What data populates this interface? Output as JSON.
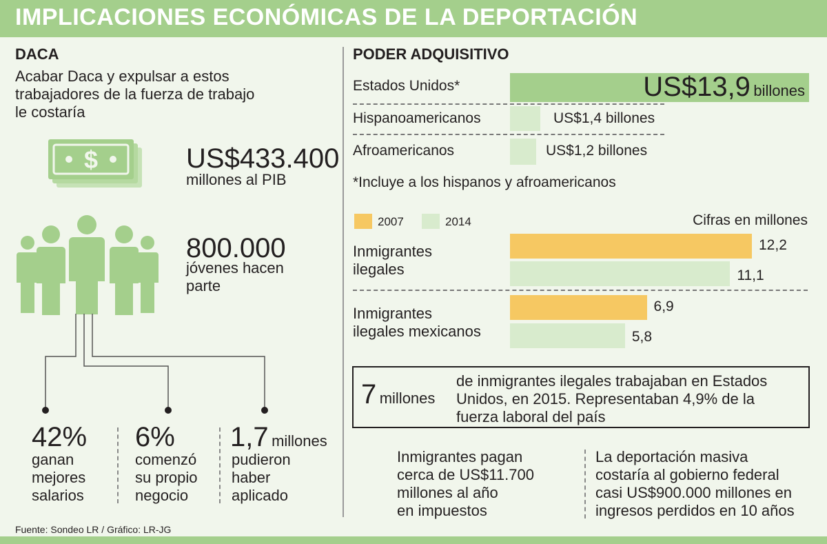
{
  "header": {
    "title": "IMPLICACIONES ECONÓMICAS DE LA DEPORTACIÓN"
  },
  "daca": {
    "title": "DACA",
    "intro": [
      "Acabar Daca y expulsar a estos",
      "trabajadores de la fuerza de trabajo",
      "le costaría"
    ],
    "gdp_value": "US$433.400",
    "gdp_label": "millones al PIB",
    "youth_value": "800.000",
    "youth_label": [
      "jóvenes hacen",
      "parte"
    ],
    "stats": [
      {
        "value": "42%",
        "unit": "",
        "label": [
          "ganan",
          "mejores",
          "salarios"
        ]
      },
      {
        "value": "6%",
        "unit": "",
        "label": [
          "comenzó",
          "su propio",
          "negocio"
        ]
      },
      {
        "value": "1,7",
        "unit": "millones",
        "label": [
          "pudieron",
          "haber",
          "aplicado"
        ]
      }
    ],
    "icons": {
      "money": "money-bills-icon",
      "people": "people-group-icon"
    }
  },
  "poder": {
    "title": "PODER ADQUISITIVO",
    "note": "*Incluye a los hispanos y afroamericanos"
  },
  "chart_data": [
    {
      "type": "bar",
      "title": "PODER ADQUISITIVO",
      "categories": [
        "Estados Unidos*",
        "Hispanoamericanos",
        "Afroamericanos"
      ],
      "values": [
        13.9,
        1.4,
        1.2
      ],
      "value_labels": [
        {
          "num": "US$13,9",
          "unit": "billones"
        },
        {
          "num": "US$1,4 billones",
          "unit": ""
        },
        {
          "num": "US$1,2 billones",
          "unit": ""
        }
      ],
      "colors": [
        "#a4cf8c",
        "#d8ebcd",
        "#d8ebcd"
      ],
      "xlim": [
        0,
        13.9
      ]
    },
    {
      "type": "bar",
      "subtitle": "Cifras en millones",
      "categories": [
        [
          "Inmigrantes",
          "ilegales"
        ],
        [
          "Inmigrantes",
          "ilegales mexicanos"
        ]
      ],
      "series": [
        {
          "name": "2007",
          "color": "#f6c862",
          "values": [
            12.2,
            6.9
          ],
          "labels": [
            "12,2",
            "6,9"
          ]
        },
        {
          "name": "2014",
          "color": "#d8ebcd",
          "values": [
            11.1,
            5.8
          ],
          "labels": [
            "11,1",
            "5,8"
          ]
        }
      ],
      "legend": "top-left",
      "xlim": [
        0,
        12.2
      ]
    }
  ],
  "workers": {
    "value": "7",
    "unit": "millones",
    "text": [
      "de inmigrantes ilegales trabajaban en Estados",
      "Unidos, en 2015. Representaban 4,9% de la",
      "fuerza laboral del país"
    ]
  },
  "taxes": {
    "text": [
      "Inmigrantes pagan",
      "cerca de US$11.700",
      "millones al año",
      "en impuestos"
    ]
  },
  "deportation": {
    "text": [
      "La deportación masiva",
      "costaría al gobierno federal",
      "casi US$900.000 millones en",
      "ingresos perdidos en 10 años"
    ]
  },
  "footer": {
    "source": "Fuente: Sondeo LR / Gráfico: LR-JG"
  }
}
